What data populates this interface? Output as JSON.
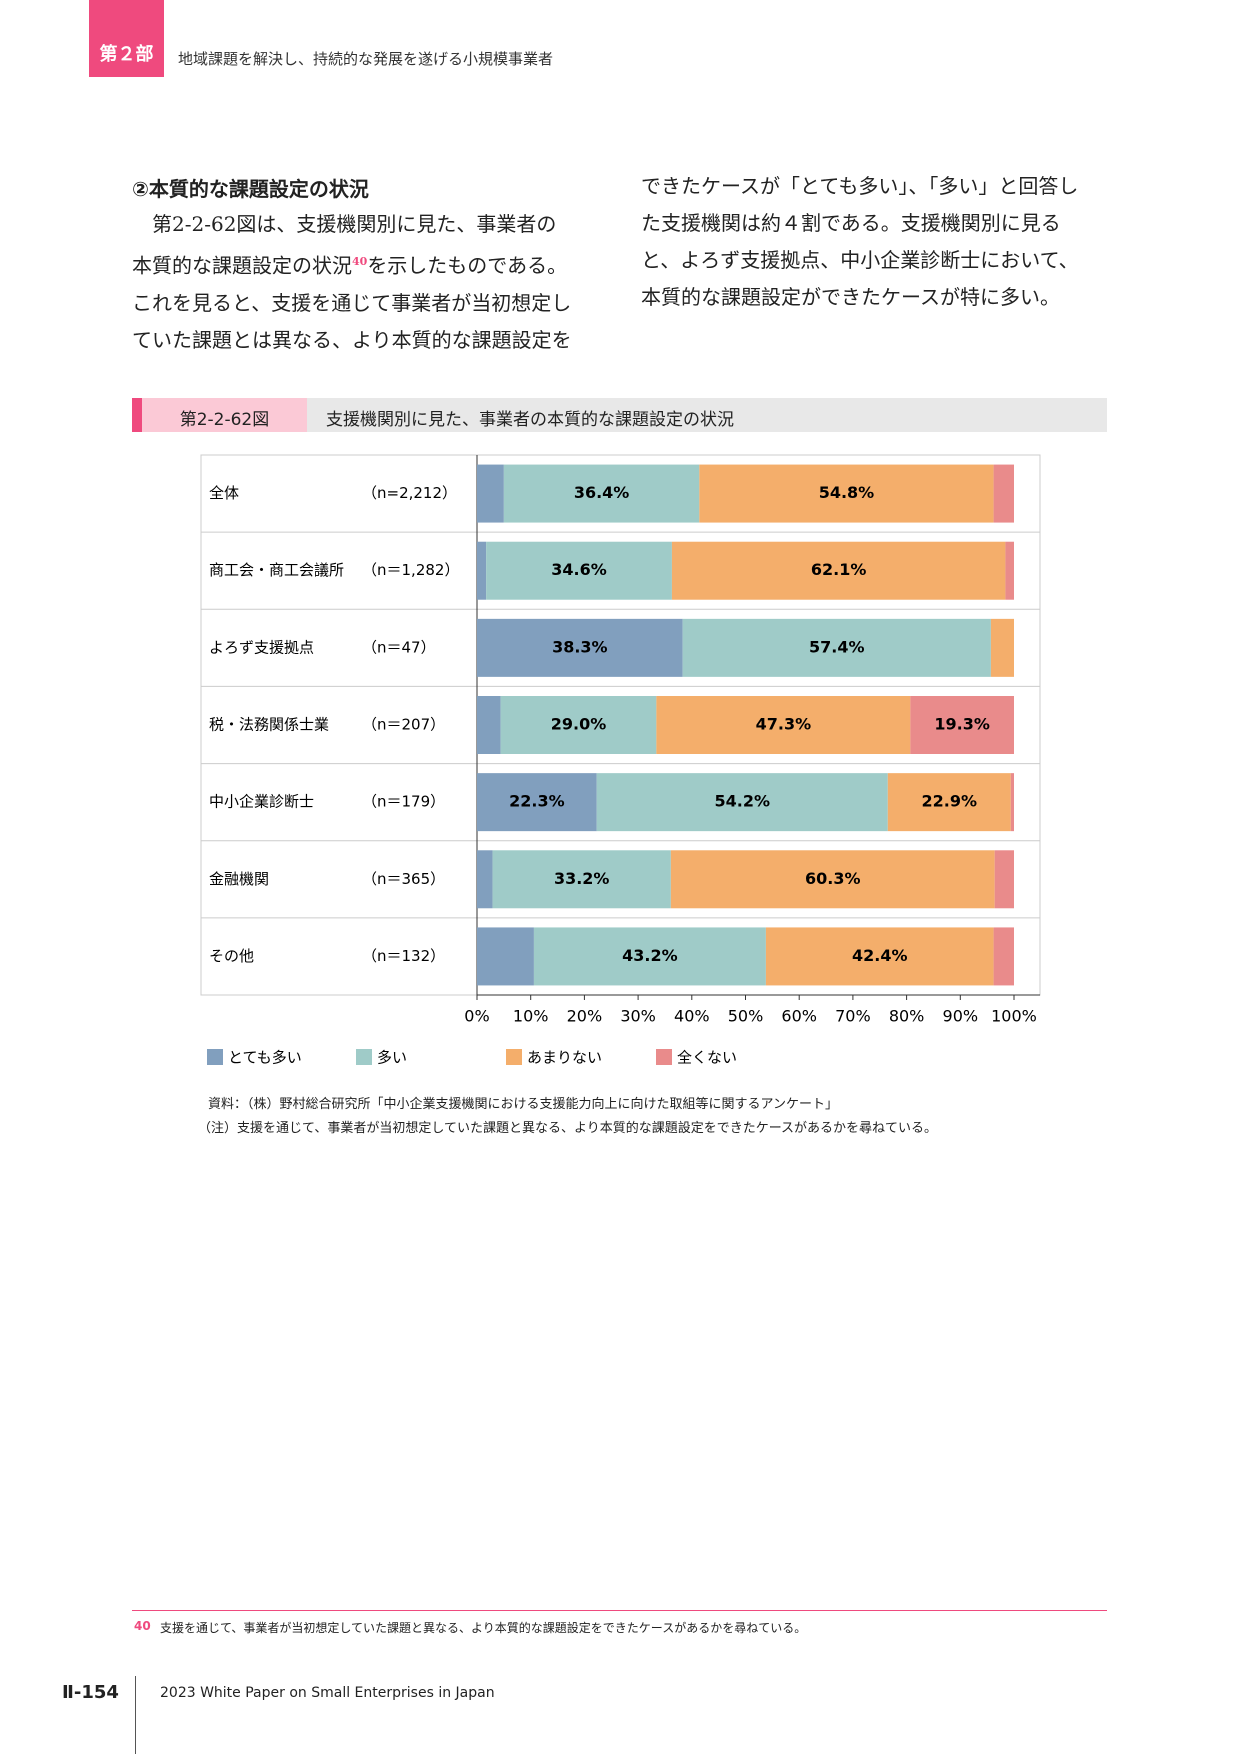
{
  "header": {
    "part": "第２部",
    "title": "地域課題を解決し、持続的な発展を遂げる小規模事業者"
  },
  "section": {
    "heading": "②本質的な課題設定の状況",
    "left_lines": [
      "第2-2-62図は、支援機関別に見た、事業者の",
      "本質的な課題設定の状況",
      "を示したものである。",
      "これを見ると、支援を通じて事業者が当初想定し",
      "ていた課題とは異なる、より本質的な課題設定を"
    ],
    "footnote_ref": "40",
    "right_lines": [
      "できたケースが「とても多い」、「多い」と回答し",
      "た支援機関は約４割である。支援機関別に見る",
      "と、よろず支援拠点、中小企業診断士において、",
      "本質的な課題設定ができたケースが特に多い。"
    ]
  },
  "figure": {
    "number": "第2-2-62図",
    "title": "支援機関別に見た、事業者の本質的な課題設定の状況"
  },
  "chart_data": {
    "type": "bar",
    "orientation": "horizontal",
    "stacked": true,
    "categories": [
      "全体",
      "商工会・商工会議所",
      "よろず支援拠点",
      "税・法務関係士業",
      "中小企業診断士",
      "金融機関",
      "その他"
    ],
    "sample_sizes": [
      "（n=2,212）",
      "（n＝1,282）",
      "（n＝47）",
      "（n＝207）",
      "（n＝179）",
      "（n＝365）",
      "（n＝132）"
    ],
    "series": [
      {
        "name": "とても多い",
        "color": "#819fbe",
        "values": [
          5.0,
          1.7,
          38.3,
          4.4,
          22.3,
          2.9,
          10.6
        ],
        "value_labels": [
          null,
          null,
          "38.3%",
          null,
          "22.3%",
          null,
          null
        ]
      },
      {
        "name": "多い",
        "color": "#9fcbc8",
        "values": [
          36.4,
          34.6,
          57.4,
          29.0,
          54.2,
          33.2,
          43.2
        ],
        "value_labels": [
          "36.4%",
          "34.6%",
          "57.4%",
          "29.0%",
          "54.2%",
          "33.2%",
          "43.2%"
        ]
      },
      {
        "name": "あまりない",
        "color": "#f4ae6b",
        "values": [
          54.8,
          62.1,
          4.3,
          47.3,
          22.9,
          60.3,
          42.4
        ],
        "value_labels": [
          "54.8%",
          "62.1%",
          null,
          "47.3%",
          "22.9%",
          "60.3%",
          "42.4%"
        ]
      },
      {
        "name": "全くない",
        "color": "#e98b8b",
        "values": [
          3.8,
          1.6,
          0,
          19.3,
          0.6,
          3.6,
          3.8
        ],
        "value_labels": [
          null,
          null,
          null,
          "19.3%",
          null,
          null,
          null
        ]
      }
    ],
    "xlim": [
      0,
      100
    ],
    "xticks": [
      {
        "value": 0,
        "label": "0%"
      },
      {
        "value": 10,
        "label": "10%"
      },
      {
        "value": 20,
        "label": "20%"
      },
      {
        "value": 30,
        "label": "30%"
      },
      {
        "value": 40,
        "label": "40%"
      },
      {
        "value": 50,
        "label": "50%"
      },
      {
        "value": 60,
        "label": "60%"
      },
      {
        "value": 70,
        "label": "70%"
      },
      {
        "value": 80,
        "label": "80%"
      },
      {
        "value": 90,
        "label": "90%"
      },
      {
        "value": 100,
        "label": "100%"
      }
    ]
  },
  "notes": [
    "資料：（株）野村総合研究所「中小企業支援機関における支援能力向上に向けた取組等に関するアンケート」",
    "（注）支援を通じて、事業者が当初想定していた課題と異なる、より本質的な課題設定をできたケースがあるかを尋ねている。"
  ],
  "footnote": {
    "number": "40",
    "text": "支援を通じて、事業者が当初想定していた課題と異なる、より本質的な課題設定をできたケースがあるかを尋ねている。"
  },
  "footer": {
    "page": "Ⅱ-154",
    "publication": "2023 White Paper on Small Enterprises in Japan"
  }
}
